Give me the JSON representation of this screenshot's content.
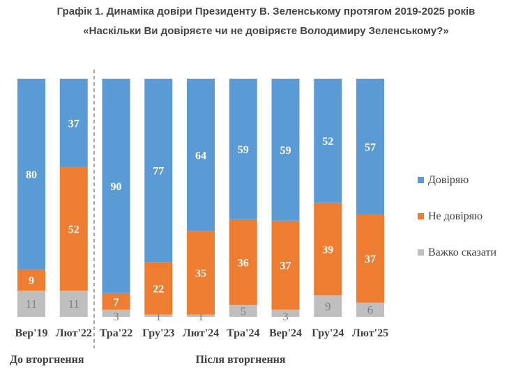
{
  "chart_data": {
    "type": "bar",
    "stacked": true,
    "title": "Графік 1. Динаміка довіри Президенту В. Зеленському протягом 2019-2025 років",
    "subtitle": "«Наскільки Ви довіряєте чи не довіряєте Володимиру Зеленському?»",
    "categories": [
      "Вер'19",
      "Лют'22",
      "Тра'22",
      "Гру'23",
      "Лют'24",
      "Тра'24",
      "Вер'24",
      "Гру'24",
      "Лют'25"
    ],
    "series": [
      {
        "name": "Довіряю",
        "color": "#5b9bd5",
        "values": [
          80,
          37,
          90,
          77,
          64,
          59,
          59,
          52,
          57
        ]
      },
      {
        "name": "Не довіряю",
        "color": "#ed7d31",
        "values": [
          9,
          52,
          7,
          22,
          35,
          36,
          37,
          39,
          37
        ]
      },
      {
        "name": "Важко сказати",
        "color": "#bfbfbf",
        "values": [
          11,
          11,
          3,
          1,
          1,
          5,
          3,
          9,
          6
        ]
      }
    ],
    "groups": [
      {
        "label": "До вторгнення",
        "categories": [
          "Вер'19",
          "Лют'22"
        ]
      },
      {
        "label": "Після вторгнення",
        "categories": [
          "Тра'22",
          "Гру'23",
          "Лют'24",
          "Тра'24",
          "Вер'24",
          "Гру'24",
          "Лют'25"
        ]
      }
    ],
    "legend": "right",
    "grid": false,
    "ylim": [
      0,
      100
    ]
  }
}
